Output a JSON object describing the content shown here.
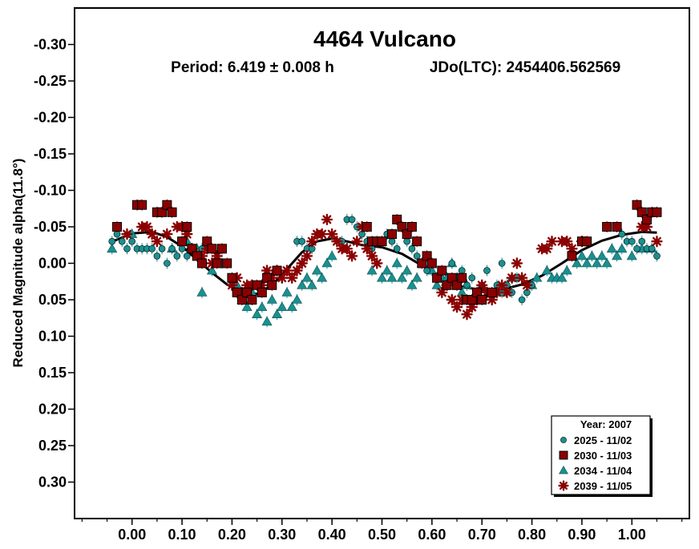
{
  "chart_data": {
    "type": "scatter",
    "title": "4464 Vulcano",
    "subtitle_period": "Period: 6.419 ± 0.008 h",
    "subtitle_epoch": "JDo(LTC): 2454406.562569",
    "xlabel": "",
    "ylabel": "Reduced Magnitude alpha(11.8°)",
    "xlim": [
      -0.115,
      1.115
    ],
    "ylim": [
      0.35,
      -0.35
    ],
    "y_inverted": true,
    "x_ticks": [
      0.0,
      0.1,
      0.2,
      0.3,
      0.4,
      0.5,
      0.6,
      0.7,
      0.8,
      0.9,
      1.0
    ],
    "x_tick_labels": [
      "0.00",
      "0.10",
      "0.20",
      "0.30",
      "0.40",
      "0.50",
      "0.60",
      "0.70",
      "0.80",
      "0.90",
      "1.00"
    ],
    "y_ticks": [
      -0.3,
      -0.25,
      -0.2,
      -0.15,
      -0.1,
      -0.05,
      0.0,
      0.05,
      0.1,
      0.15,
      0.2,
      0.25,
      0.3
    ],
    "y_tick_labels": [
      "-0.30",
      "-0.25",
      "-0.20",
      "-0.15",
      "-0.10",
      "-0.05",
      "0.00",
      "0.05",
      "0.10",
      "0.15",
      "0.20",
      "0.25",
      "0.30"
    ],
    "grid": false,
    "legend_placement": "bottom-right",
    "legend_title": "Year: 2007",
    "series": [
      {
        "name": "2025 - 11/02",
        "marker": "circle",
        "color": "#1a9090",
        "points": [
          [
            -0.04,
            -0.03
          ],
          [
            -0.03,
            -0.04
          ],
          [
            -0.02,
            -0.03
          ],
          [
            -0.01,
            -0.02
          ],
          [
            0.0,
            -0.03
          ],
          [
            0.01,
            -0.02
          ],
          [
            0.02,
            -0.02
          ],
          [
            0.03,
            -0.02
          ],
          [
            0.04,
            -0.02
          ],
          [
            0.05,
            -0.01
          ],
          [
            0.06,
            -0.02
          ],
          [
            0.07,
            0.0
          ],
          [
            0.08,
            -0.02
          ],
          [
            0.09,
            -0.01
          ],
          [
            0.1,
            -0.02
          ],
          [
            0.11,
            -0.01
          ],
          [
            0.12,
            -0.02
          ],
          [
            0.13,
            -0.01
          ],
          [
            0.14,
            -0.02
          ],
          [
            0.33,
            -0.03
          ],
          [
            0.34,
            -0.03
          ],
          [
            0.35,
            -0.02
          ],
          [
            0.36,
            -0.02
          ],
          [
            0.42,
            -0.03
          ],
          [
            0.43,
            -0.06
          ],
          [
            0.44,
            -0.06
          ],
          [
            0.45,
            -0.05
          ],
          [
            0.46,
            -0.04
          ],
          [
            0.47,
            -0.03
          ],
          [
            0.48,
            -0.02
          ],
          [
            0.5,
            -0.03
          ],
          [
            0.51,
            -0.04
          ],
          [
            0.52,
            -0.03
          ],
          [
            0.53,
            -0.02
          ],
          [
            0.55,
            -0.03
          ],
          [
            0.56,
            -0.02
          ],
          [
            0.57,
            -0.01
          ],
          [
            0.58,
            0.0
          ],
          [
            0.59,
            0.01
          ],
          [
            0.6,
            0.0
          ],
          [
            0.61,
            0.02
          ],
          [
            0.62,
            0.01
          ],
          [
            0.63,
            0.03
          ],
          [
            0.64,
            0.0
          ],
          [
            0.65,
            0.02
          ],
          [
            0.66,
            0.01
          ],
          [
            0.67,
            0.03
          ],
          [
            0.68,
            0.02
          ],
          [
            0.69,
            0.04
          ],
          [
            0.7,
            0.03
          ],
          [
            0.71,
            0.01
          ],
          [
            0.72,
            0.04
          ],
          [
            0.73,
            0.03
          ],
          [
            0.74,
            0.0
          ],
          [
            0.75,
            0.03
          ],
          [
            0.76,
            0.04
          ],
          [
            0.77,
            0.02
          ],
          [
            0.78,
            0.05
          ],
          [
            0.79,
            0.04
          ],
          [
            0.8,
            0.03
          ],
          [
            0.98,
            -0.04
          ],
          [
            0.99,
            -0.03
          ],
          [
            1.0,
            -0.03
          ],
          [
            1.01,
            -0.02
          ],
          [
            1.02,
            -0.03
          ],
          [
            1.03,
            -0.02
          ],
          [
            1.04,
            -0.02
          ],
          [
            1.05,
            -0.01
          ]
        ]
      },
      {
        "name": "2030 - 11/03",
        "marker": "square",
        "color": "#8b0000",
        "points": [
          [
            -0.03,
            -0.05
          ],
          [
            0.01,
            -0.08
          ],
          [
            0.02,
            -0.08
          ],
          [
            0.05,
            -0.07
          ],
          [
            0.06,
            -0.07
          ],
          [
            0.07,
            -0.08
          ],
          [
            0.08,
            -0.07
          ],
          [
            0.1,
            -0.03
          ],
          [
            0.11,
            -0.05
          ],
          [
            0.12,
            -0.02
          ],
          [
            0.13,
            -0.01
          ],
          [
            0.14,
            0.0
          ],
          [
            0.15,
            -0.03
          ],
          [
            0.16,
            -0.02
          ],
          [
            0.17,
            0.0
          ],
          [
            0.18,
            -0.02
          ],
          [
            0.19,
            0.0
          ],
          [
            0.2,
            0.02
          ],
          [
            0.21,
            0.04
          ],
          [
            0.22,
            0.05
          ],
          [
            0.23,
            0.04
          ],
          [
            0.24,
            0.05
          ],
          [
            0.25,
            0.03
          ],
          [
            0.26,
            0.04
          ],
          [
            0.27,
            0.02
          ],
          [
            0.28,
            0.03
          ],
          [
            0.29,
            0.01
          ],
          [
            0.47,
            -0.05
          ],
          [
            0.48,
            -0.03
          ],
          [
            0.49,
            -0.03
          ],
          [
            0.5,
            -0.03
          ],
          [
            0.52,
            -0.04
          ],
          [
            0.53,
            -0.06
          ],
          [
            0.54,
            -0.05
          ],
          [
            0.55,
            -0.04
          ],
          [
            0.56,
            -0.05
          ],
          [
            0.57,
            -0.03
          ],
          [
            0.58,
            0.0
          ],
          [
            0.59,
            -0.01
          ],
          [
            0.6,
            0.0
          ],
          [
            0.61,
            0.02
          ],
          [
            0.62,
            0.01
          ],
          [
            0.63,
            0.03
          ],
          [
            0.64,
            0.02
          ],
          [
            0.65,
            0.03
          ],
          [
            0.66,
            0.02
          ],
          [
            0.67,
            0.05
          ],
          [
            0.68,
            0.05
          ],
          [
            0.69,
            0.04
          ],
          [
            0.7,
            0.05
          ],
          [
            0.72,
            0.04
          ],
          [
            0.88,
            -0.01
          ],
          [
            0.9,
            -0.03
          ],
          [
            0.91,
            -0.03
          ],
          [
            0.95,
            -0.05
          ],
          [
            0.97,
            -0.05
          ],
          [
            1.01,
            -0.08
          ],
          [
            1.02,
            -0.07
          ],
          [
            1.03,
            -0.06
          ],
          [
            1.04,
            -0.07
          ],
          [
            1.05,
            -0.07
          ]
        ]
      },
      {
        "name": "2034 - 11/04",
        "marker": "triangle",
        "color": "#1a9090",
        "points": [
          [
            -0.04,
            -0.02
          ],
          [
            0.0,
            -0.04
          ],
          [
            0.08,
            -0.02
          ],
          [
            0.11,
            -0.03
          ],
          [
            0.13,
            -0.02
          ],
          [
            0.14,
            0.04
          ],
          [
            0.16,
            0.01
          ],
          [
            0.18,
            0.0
          ],
          [
            0.21,
            0.03
          ],
          [
            0.22,
            0.05
          ],
          [
            0.23,
            0.06
          ],
          [
            0.24,
            0.04
          ],
          [
            0.25,
            0.07
          ],
          [
            0.26,
            0.06
          ],
          [
            0.27,
            0.08
          ],
          [
            0.28,
            0.05
          ],
          [
            0.29,
            0.07
          ],
          [
            0.3,
            0.06
          ],
          [
            0.31,
            0.04
          ],
          [
            0.32,
            0.06
          ],
          [
            0.33,
            0.05
          ],
          [
            0.34,
            0.03
          ],
          [
            0.35,
            0.02
          ],
          [
            0.36,
            0.03
          ],
          [
            0.37,
            0.01
          ],
          [
            0.38,
            0.02
          ],
          [
            0.39,
            0.0
          ],
          [
            0.4,
            -0.01
          ],
          [
            0.48,
            0.01
          ],
          [
            0.5,
            0.02
          ],
          [
            0.51,
            0.01
          ],
          [
            0.52,
            0.02
          ],
          [
            0.53,
            0.0
          ],
          [
            0.54,
            0.02
          ],
          [
            0.55,
            0.01
          ],
          [
            0.56,
            0.03
          ],
          [
            0.57,
            0.02
          ],
          [
            0.58,
            0.0
          ],
          [
            0.6,
            0.01
          ],
          [
            0.61,
            0.03
          ],
          [
            0.62,
            0.02
          ],
          [
            0.63,
            0.02
          ],
          [
            0.64,
            0.0
          ],
          [
            0.65,
            0.03
          ],
          [
            0.66,
            0.04
          ],
          [
            0.67,
            0.03
          ],
          [
            0.68,
            0.05
          ],
          [
            0.69,
            0.04
          ],
          [
            0.7,
            0.03
          ],
          [
            0.74,
            0.04
          ],
          [
            0.76,
            0.02
          ],
          [
            0.8,
            0.03
          ],
          [
            0.81,
            0.02
          ],
          [
            0.83,
            0.01
          ],
          [
            0.84,
            0.02
          ],
          [
            0.85,
            0.02
          ],
          [
            0.86,
            0.02
          ],
          [
            0.87,
            0.01
          ],
          [
            0.89,
            0.0
          ],
          [
            0.9,
            -0.01
          ],
          [
            0.91,
            0.0
          ],
          [
            0.92,
            -0.01
          ],
          [
            0.93,
            0.0
          ],
          [
            0.94,
            -0.01
          ],
          [
            0.95,
            0.0
          ],
          [
            0.96,
            -0.02
          ],
          [
            0.97,
            -0.01
          ],
          [
            0.98,
            -0.02
          ],
          [
            1.0,
            -0.01
          ],
          [
            1.02,
            -0.02
          ],
          [
            1.04,
            -0.02
          ]
        ]
      },
      {
        "name": "2039 - 11/05",
        "marker": "asterisk",
        "color": "#8b0000",
        "points": [
          [
            -0.01,
            -0.04
          ],
          [
            0.02,
            -0.05
          ],
          [
            0.03,
            -0.05
          ],
          [
            0.04,
            -0.04
          ],
          [
            0.05,
            -0.03
          ],
          [
            0.07,
            -0.04
          ],
          [
            0.09,
            -0.05
          ],
          [
            0.1,
            -0.05
          ],
          [
            0.11,
            -0.04
          ],
          [
            0.12,
            -0.02
          ],
          [
            0.14,
            -0.01
          ],
          [
            0.15,
            -0.02
          ],
          [
            0.16,
            0.0
          ],
          [
            0.17,
            -0.01
          ],
          [
            0.2,
            0.03
          ],
          [
            0.21,
            0.02
          ],
          [
            0.22,
            0.04
          ],
          [
            0.23,
            0.03
          ],
          [
            0.24,
            0.03
          ],
          [
            0.26,
            0.03
          ],
          [
            0.27,
            0.01
          ],
          [
            0.28,
            0.02
          ],
          [
            0.29,
            0.01
          ],
          [
            0.3,
            0.02
          ],
          [
            0.31,
            0.01
          ],
          [
            0.32,
            0.02
          ],
          [
            0.33,
            0.01
          ],
          [
            0.34,
            0.0
          ],
          [
            0.35,
            -0.01
          ],
          [
            0.36,
            -0.03
          ],
          [
            0.37,
            -0.04
          ],
          [
            0.38,
            -0.04
          ],
          [
            0.39,
            -0.06
          ],
          [
            0.4,
            -0.04
          ],
          [
            0.41,
            -0.03
          ],
          [
            0.42,
            -0.02
          ],
          [
            0.43,
            -0.02
          ],
          [
            0.44,
            -0.01
          ],
          [
            0.45,
            -0.03
          ],
          [
            0.46,
            -0.05
          ],
          [
            0.47,
            -0.02
          ],
          [
            0.48,
            -0.01
          ],
          [
            0.49,
            0.0
          ],
          [
            0.62,
            0.04
          ],
          [
            0.63,
            0.03
          ],
          [
            0.64,
            0.05
          ],
          [
            0.65,
            0.06
          ],
          [
            0.66,
            0.05
          ],
          [
            0.67,
            0.07
          ],
          [
            0.68,
            0.06
          ],
          [
            0.69,
            0.05
          ],
          [
            0.7,
            0.03
          ],
          [
            0.71,
            0.04
          ],
          [
            0.72,
            0.05
          ],
          [
            0.73,
            0.04
          ],
          [
            0.74,
            0.03
          ],
          [
            0.75,
            0.04
          ],
          [
            0.76,
            0.02
          ],
          [
            0.77,
            0.0
          ],
          [
            0.78,
            0.02
          ],
          [
            0.79,
            0.03
          ],
          [
            0.82,
            -0.02
          ],
          [
            0.83,
            -0.02
          ],
          [
            0.84,
            -0.03
          ],
          [
            0.86,
            -0.03
          ],
          [
            0.87,
            -0.03
          ],
          [
            0.88,
            -0.02
          ],
          [
            0.9,
            -0.03
          ],
          [
            1.02,
            -0.05
          ],
          [
            1.03,
            -0.05
          ],
          [
            1.05,
            -0.03
          ]
        ]
      }
    ],
    "fit_curve": {
      "color": "#000000",
      "points": [
        [
          -0.035,
          -0.031
        ],
        [
          0.0,
          -0.041
        ],
        [
          0.04,
          -0.043
        ],
        [
          0.07,
          -0.036
        ],
        [
          0.1,
          -0.023
        ],
        [
          0.13,
          -0.005
        ],
        [
          0.16,
          0.013
        ],
        [
          0.19,
          0.029
        ],
        [
          0.22,
          0.04
        ],
        [
          0.25,
          0.042
        ],
        [
          0.28,
          0.03
        ],
        [
          0.31,
          0.008
        ],
        [
          0.34,
          -0.015
        ],
        [
          0.37,
          -0.03
        ],
        [
          0.4,
          -0.034
        ],
        [
          0.43,
          -0.03
        ],
        [
          0.46,
          -0.025
        ],
        [
          0.5,
          -0.022
        ],
        [
          0.54,
          -0.013
        ],
        [
          0.58,
          0.003
        ],
        [
          0.62,
          0.02
        ],
        [
          0.66,
          0.032
        ],
        [
          0.7,
          0.037
        ],
        [
          0.74,
          0.036
        ],
        [
          0.78,
          0.029
        ],
        [
          0.82,
          0.017
        ],
        [
          0.86,
          0.0
        ],
        [
          0.9,
          -0.018
        ],
        [
          0.94,
          -0.031
        ],
        [
          0.98,
          -0.039
        ],
        [
          1.02,
          -0.043
        ],
        [
          1.05,
          -0.042
        ]
      ]
    }
  }
}
